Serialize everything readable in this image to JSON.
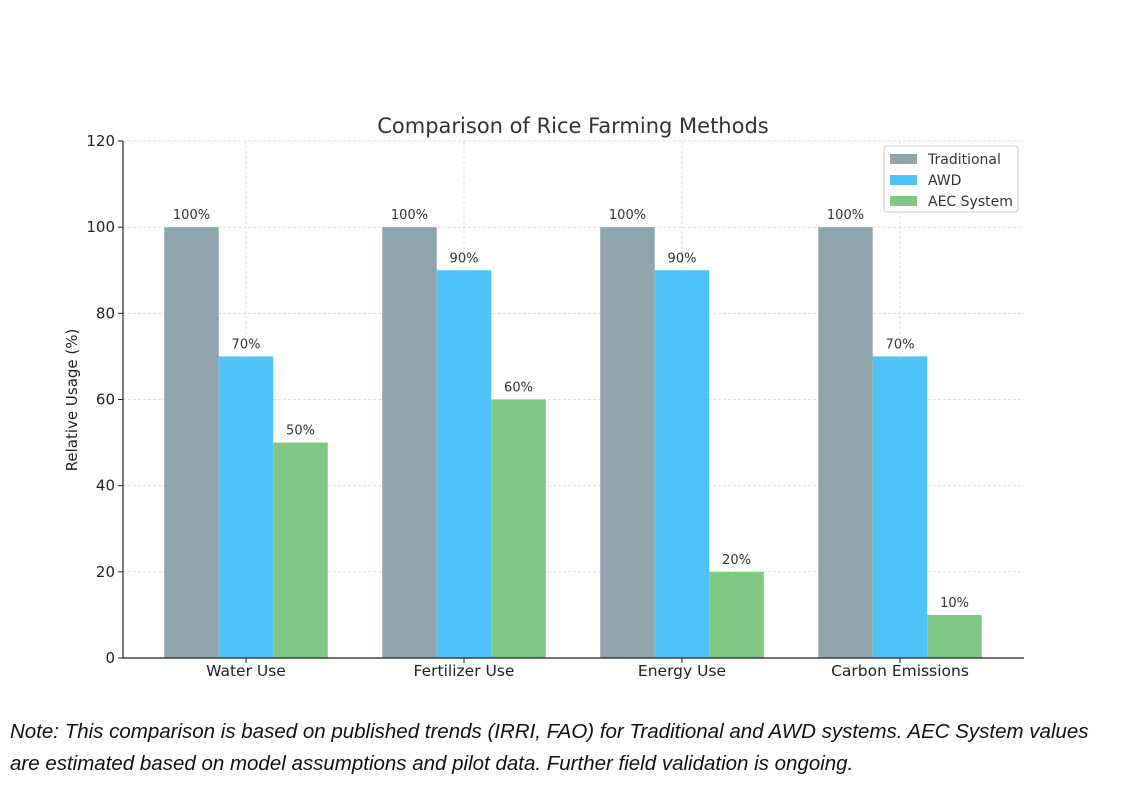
{
  "chart_data": {
    "type": "bar",
    "title": "Comparison of Rice Farming Methods",
    "ylabel": "Relative Usage (%)",
    "xlabel": "",
    "categories": [
      "Water Use",
      "Fertilizer Use",
      "Energy Use",
      "Carbon Emissions"
    ],
    "series": [
      {
        "name": "Traditional",
        "values": [
          100,
          100,
          100,
          100
        ],
        "labels": [
          "100%",
          "100%",
          "100%",
          "100%"
        ],
        "color": "#90a4ae"
      },
      {
        "name": "AWD",
        "values": [
          70,
          90,
          90,
          70
        ],
        "labels": [
          "70%",
          "90%",
          "90%",
          "70%"
        ],
        "color": "#4fc3f7"
      },
      {
        "name": "AEC System",
        "values": [
          50,
          60,
          20,
          10
        ],
        "labels": [
          "50%",
          "60%",
          "20%",
          "10%"
        ],
        "color": "#81c784"
      }
    ],
    "ylim": [
      0,
      120
    ],
    "yticks": [
      0,
      20,
      40,
      60,
      80,
      100,
      120
    ],
    "grid": true,
    "legend_position": "top-right"
  },
  "note": {
    "line1": "Note: This comparison is based on published trends (IRRI, FAO) for Traditional and AWD systems. AEC System values",
    "line2": "are estimated based on model assumptions and pilot data. Further field validation is ongoing."
  }
}
